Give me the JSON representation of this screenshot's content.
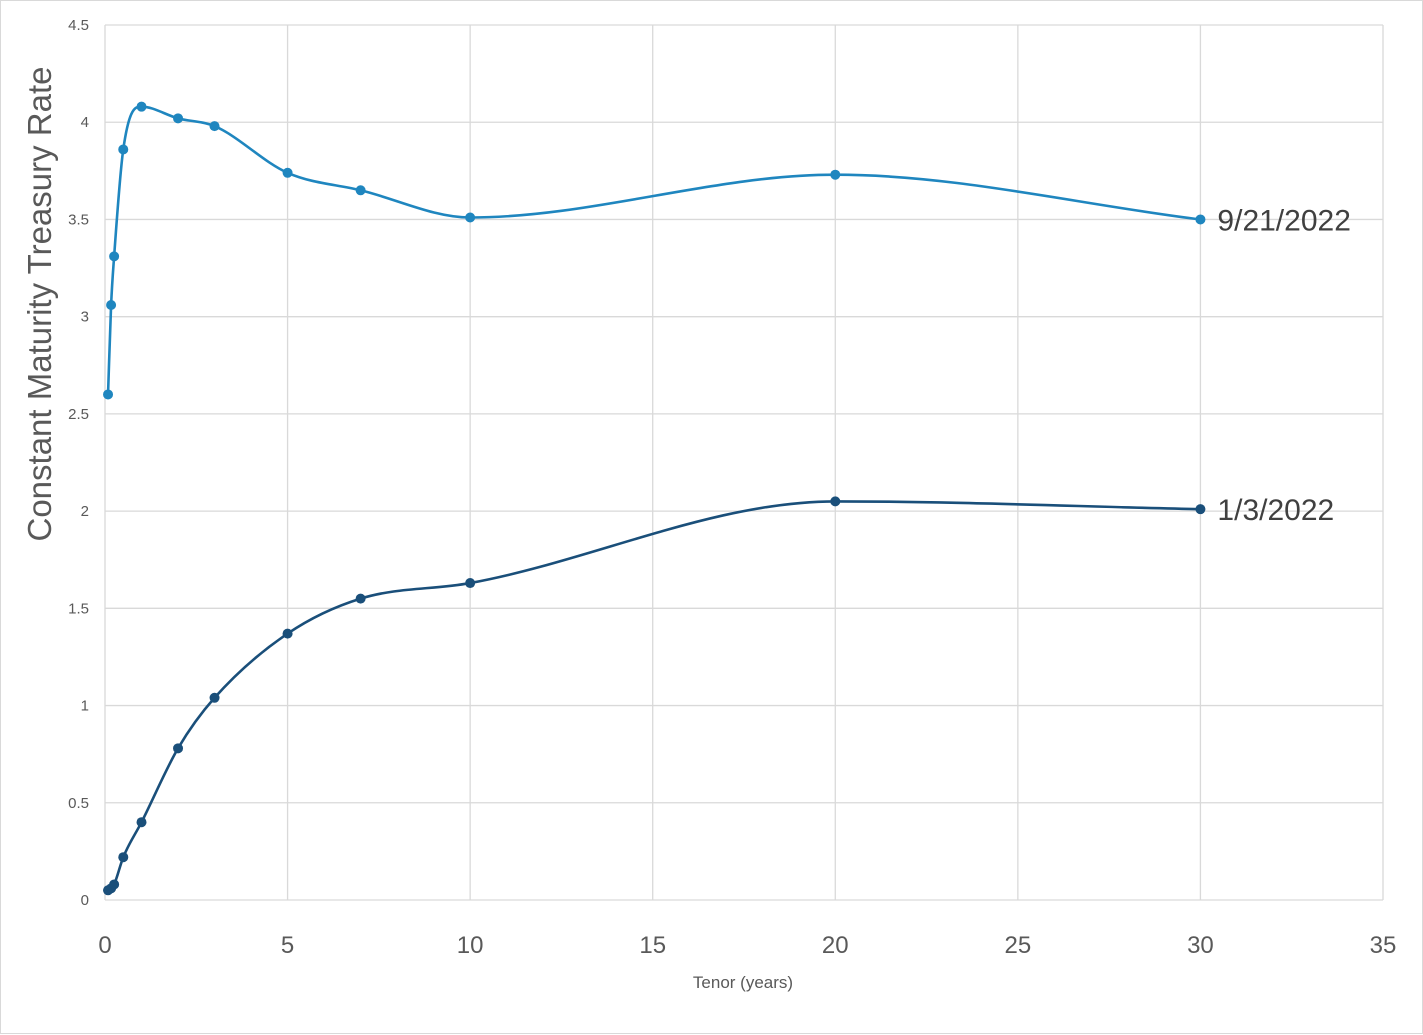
{
  "chart_data": {
    "type": "line",
    "xlabel": "Tenor (years)",
    "ylabel": "Constant Maturity Treasury Rate",
    "xlim": [
      0,
      35
    ],
    "ylim": [
      0,
      4.5
    ],
    "x_ticks": [
      0,
      5,
      10,
      15,
      20,
      25,
      30,
      35
    ],
    "y_ticks": [
      0,
      0.5,
      1,
      1.5,
      2,
      2.5,
      3,
      3.5,
      4,
      4.5
    ],
    "grid": true,
    "legend": "labels at line ends (right)",
    "series": [
      {
        "name": "9/21/2022",
        "color": "#1f86bf",
        "x": [
          0.083,
          0.167,
          0.25,
          0.5,
          1,
          2,
          3,
          5,
          7,
          10,
          20,
          30
        ],
        "y": [
          2.6,
          3.06,
          3.31,
          3.86,
          4.08,
          4.02,
          3.98,
          3.74,
          3.65,
          3.51,
          3.73,
          3.5
        ]
      },
      {
        "name": "1/3/2022",
        "color": "#1a4f7a",
        "x": [
          0.083,
          0.167,
          0.25,
          0.5,
          1,
          2,
          3,
          5,
          7,
          10,
          20,
          30
        ],
        "y": [
          0.05,
          0.06,
          0.08,
          0.22,
          0.4,
          0.78,
          1.04,
          1.37,
          1.55,
          1.63,
          2.05,
          2.01
        ]
      }
    ]
  }
}
